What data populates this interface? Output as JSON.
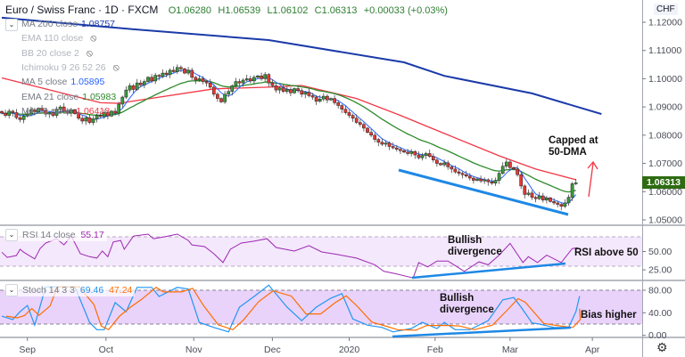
{
  "header": {
    "title": "Euro / Swiss Franc · 1D · FXCM",
    "open": "O1.06280",
    "high": "H1.06539",
    "low": "L1.06102",
    "close": "C1.06313",
    "change": "+0.00033 (+0.03%)"
  },
  "indicators": [
    {
      "label": "MA 200 close",
      "value": "1.08757",
      "color": "#1a3aa8",
      "hidden": false
    },
    {
      "label": "EMA 110 close",
      "value": "",
      "hidden": true
    },
    {
      "label": "BB 20 close 2",
      "value": "",
      "hidden": true
    },
    {
      "label": "Ichimoku 9 26 52 26",
      "value": "",
      "hidden": true
    },
    {
      "label": "MA 5 close",
      "value": "1.05895",
      "color": "#2962ff",
      "hidden": false
    },
    {
      "label": "EMA 21 close",
      "value": "1.05983",
      "color": "#2e8b2e",
      "hidden": false
    },
    {
      "label": "MA 50 close",
      "value": "1.06418",
      "color": "#f23645",
      "hidden": false
    }
  ],
  "icons": {
    "collapse": "chevron-down-icon",
    "hidden": "eye-crossed-icon",
    "settings": "gear-icon"
  },
  "price_axis": {
    "currency": "CHF",
    "last_price": "1.06313",
    "last_price_color": "#2e6b12"
  },
  "rsi_legend": {
    "label": "RSI 14 close",
    "value": "55.17",
    "color": "#9c27b0"
  },
  "stoch_legend": {
    "label": "Stoch 14 3 3",
    "k_value": "69.46",
    "d_value": "47.24",
    "k_color": "#2196f3",
    "d_color": "#ff6d00"
  },
  "annotations": {
    "price": "Capped at\n50-DMA",
    "rsi_div": "Bullish\ndivergence",
    "rsi_note": "RSI above 50",
    "stoch_div": "Bullish\ndivergence",
    "stoch_note": "Bias higher"
  },
  "chart_data": [
    {
      "type": "candlestick",
      "title": "Euro / Swiss Franc · 1D · FXCM",
      "ylim": [
        1.05,
        1.12
      ],
      "y_ticks": [
        "1.12000",
        "1.11000",
        "1.10000",
        "1.09000",
        "1.08000",
        "1.07000",
        "1.06000",
        "1.05000"
      ],
      "y_tick_values": [
        1.12,
        1.11,
        1.1,
        1.09,
        1.08,
        1.07,
        1.06,
        1.05
      ],
      "x_ticks": [
        {
          "label": "Sep",
          "bar": 7
        },
        {
          "label": "Oct",
          "bar": 28.5
        },
        {
          "label": "Nov",
          "bar": 52.5
        },
        {
          "label": "Dec",
          "bar": 74
        },
        {
          "label": "2020",
          "bar": 95
        },
        {
          "label": "Feb",
          "bar": 118.5
        },
        {
          "label": "Mar",
          "bar": 139
        },
        {
          "label": "Apr",
          "bar": 161.5
        }
      ],
      "closes": [
        1.0878,
        1.087,
        1.0885,
        1.088,
        1.0862,
        1.0855,
        1.0868,
        1.0875,
        1.089,
        1.0882,
        1.0895,
        1.0888,
        1.0875,
        1.088,
        1.087,
        1.0892,
        1.09,
        1.0885,
        1.0878,
        1.089,
        1.0876,
        1.086,
        1.085,
        1.0862,
        1.0845,
        1.0858,
        1.087,
        1.0866,
        1.088,
        1.0868,
        1.0885,
        1.0878,
        1.091,
        1.0935,
        1.096,
        1.0975,
        1.0962,
        1.0985,
        1.0978,
        1.099,
        1.1005,
        1.0992,
        1.1012,
        1.1008,
        1.102,
        1.1015,
        1.103,
        1.1025,
        1.104,
        1.1035,
        1.102,
        1.103,
        1.1005,
        1.0995,
        1.1,
        1.099,
        1.0985,
        1.097,
        1.0945,
        1.093,
        1.0918,
        1.0945,
        1.0955,
        1.0975,
        1.099,
        1.0985,
        1.0995,
        1.1,
        1.0992,
        1.1005,
        1.101,
        1.1,
        1.1015,
        1.0985,
        1.0975,
        1.096,
        1.0968,
        1.0955,
        1.0962,
        1.095,
        1.0965,
        1.0958,
        1.0945,
        1.0952,
        1.094,
        1.0935,
        1.092,
        1.0928,
        1.0938,
        1.0925,
        1.093,
        1.0915,
        1.0905,
        1.0892,
        1.088,
        1.087,
        1.086,
        1.0845,
        1.0838,
        1.0825,
        1.081,
        1.08,
        1.0785,
        1.0775,
        1.0768,
        1.0772,
        1.076,
        1.0755,
        1.075,
        1.0745,
        1.074,
        1.0735,
        1.0742,
        1.073,
        1.072,
        1.0728,
        1.0735,
        1.0725,
        1.0712,
        1.07,
        1.0695,
        1.0702,
        1.0688,
        1.068,
        1.067,
        1.0665,
        1.066,
        1.0655,
        1.0648,
        1.064,
        1.0645,
        1.0638,
        1.0642,
        1.0635,
        1.063,
        1.064,
        1.0665,
        1.069,
        1.0705,
        1.0685,
        1.068,
        1.066,
        1.062,
        1.059,
        1.0595,
        1.058,
        1.0575,
        1.0585,
        1.057,
        1.0578,
        1.0565,
        1.056,
        1.0555,
        1.0548,
        1.056,
        1.058,
        1.0628,
        1.06313
      ],
      "ma200": [
        [
          0,
          1.1216
        ],
        [
          36,
          1.1175
        ],
        [
          73,
          1.1137
        ],
        [
          110,
          1.1058
        ],
        [
          121,
          1.101
        ],
        [
          145,
          1.0948
        ],
        [
          164,
          1.0875
        ]
      ],
      "ma50": [
        [
          0,
          1.1003
        ],
        [
          27,
          1.0915
        ],
        [
          32,
          1.0913
        ],
        [
          58,
          1.0964
        ],
        [
          73,
          1.097
        ],
        [
          82,
          1.0976
        ],
        [
          97,
          1.093
        ],
        [
          109,
          1.087
        ],
        [
          121,
          1.0806
        ],
        [
          136,
          1.0727
        ],
        [
          146,
          1.068
        ],
        [
          157,
          1.0642
        ]
      ],
      "colors": {
        "up": "#3a9a3a",
        "down": "#e53935",
        "ma200": "#1a3aa8",
        "ma50": "#f23645",
        "ema21": "#2e8b2e",
        "ma5": "#2962ff"
      }
    },
    {
      "type": "line",
      "name": "RSI 14 close",
      "ylim": [
        0,
        100
      ],
      "y_ticks": [
        "50.00",
        "25.00"
      ],
      "y_tick_values": [
        50,
        25
      ],
      "band": [
        30,
        70
      ],
      "points": [
        [
          0,
          49
        ],
        [
          1.5,
          42
        ],
        [
          4,
          44.5
        ],
        [
          5,
          53
        ],
        [
          6,
          49
        ],
        [
          9,
          40
        ],
        [
          10.5,
          54
        ],
        [
          12,
          61.5
        ],
        [
          15,
          67.5
        ],
        [
          17,
          59
        ],
        [
          19,
          71
        ],
        [
          21.5,
          47
        ],
        [
          24,
          43
        ],
        [
          26,
          41
        ],
        [
          27.5,
          50.6
        ],
        [
          29,
          43
        ],
        [
          30.5,
          63
        ],
        [
          32.5,
          65
        ],
        [
          33.5,
          53
        ],
        [
          36,
          71
        ],
        [
          40,
          73.6
        ],
        [
          41.5,
          67.5
        ],
        [
          44.5,
          70
        ],
        [
          48,
          73.6
        ],
        [
          51,
          65
        ],
        [
          52,
          59
        ],
        [
          55.5,
          56.7
        ],
        [
          58,
          47
        ],
        [
          60.5,
          35
        ],
        [
          62.5,
          53
        ],
        [
          65.5,
          61.5
        ],
        [
          69,
          64
        ],
        [
          72.5,
          67.5
        ],
        [
          75,
          55.5
        ],
        [
          80,
          50.6
        ],
        [
          84,
          58
        ],
        [
          87.5,
          49.4
        ],
        [
          92,
          45.8
        ],
        [
          97,
          41
        ],
        [
          102,
          32
        ],
        [
          104.5,
          23
        ],
        [
          107.5,
          20
        ],
        [
          112.5,
          14
        ],
        [
          114,
          35
        ],
        [
          116.5,
          29
        ],
        [
          119,
          37
        ],
        [
          122,
          37
        ],
        [
          126.5,
          23
        ],
        [
          130.5,
          36
        ],
        [
          133,
          32
        ],
        [
          136,
          45
        ],
        [
          139,
          61
        ],
        [
          142.5,
          35
        ],
        [
          144,
          43
        ],
        [
          146.5,
          35
        ],
        [
          149,
          45
        ],
        [
          153,
          35
        ],
        [
          156,
          54
        ],
        [
          157.5,
          55.17
        ]
      ]
    },
    {
      "type": "line",
      "name": "Stoch 14 3 3",
      "ylim": [
        0,
        100
      ],
      "y_ticks": [
        "80.00",
        "40.00",
        "0.00"
      ],
      "y_tick_values": [
        80,
        40,
        0
      ],
      "band": [
        20,
        80
      ],
      "k_points": [
        [
          0,
          34
        ],
        [
          3,
          28
        ],
        [
          5,
          42
        ],
        [
          7,
          53
        ],
        [
          9,
          18
        ],
        [
          12,
          86
        ],
        [
          14,
          86
        ],
        [
          20,
          86
        ],
        [
          24,
          23
        ],
        [
          26,
          10
        ],
        [
          28,
          10
        ],
        [
          31,
          58
        ],
        [
          34,
          42
        ],
        [
          37,
          85
        ],
        [
          41,
          85
        ],
        [
          43,
          69
        ],
        [
          48,
          85
        ],
        [
          51,
          82
        ],
        [
          54,
          23
        ],
        [
          58,
          14
        ],
        [
          62,
          6
        ],
        [
          65,
          50
        ],
        [
          69,
          69
        ],
        [
          73,
          89
        ],
        [
          78,
          50
        ],
        [
          82,
          26
        ],
        [
          86,
          50
        ],
        [
          90,
          66
        ],
        [
          93,
          74
        ],
        [
          96,
          29
        ],
        [
          100,
          18
        ],
        [
          104,
          14
        ],
        [
          107,
          6
        ],
        [
          112,
          12
        ],
        [
          115,
          23
        ],
        [
          119,
          12
        ],
        [
          121,
          23
        ],
        [
          124,
          10
        ],
        [
          128,
          10
        ],
        [
          133,
          26
        ],
        [
          137,
          63
        ],
        [
          140,
          67
        ],
        [
          142,
          50
        ],
        [
          145,
          22
        ],
        [
          147,
          20
        ],
        [
          151,
          14
        ],
        [
          155,
          14
        ],
        [
          157,
          42
        ],
        [
          158,
          69.46
        ]
      ],
      "d_last": 47.24
    }
  ]
}
